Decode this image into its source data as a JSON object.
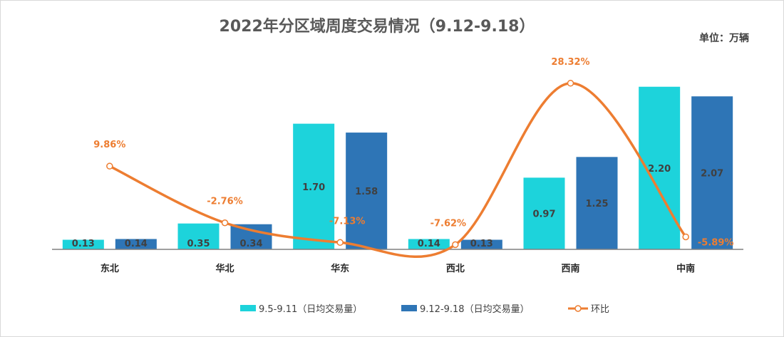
{
  "chart_data": {
    "type": "bar",
    "title": "2022年分区域周度交易情况（9.12-9.18）",
    "unit": "单位：万辆",
    "categories": [
      "东北",
      "华北",
      "华东",
      "西北",
      "西南",
      "中南"
    ],
    "series": [
      {
        "name": "9.5-9.11（日均交易量）",
        "values": [
          0.13,
          0.35,
          1.7,
          0.14,
          0.97,
          2.2
        ],
        "labels": [
          "0.13",
          "0.35",
          "1.70",
          "0.14",
          "0.97",
          "2.20"
        ],
        "color": "#1dd3db"
      },
      {
        "name": "9.12-9.18（日均交易量）",
        "values": [
          0.14,
          0.34,
          1.58,
          0.13,
          1.25,
          2.07
        ],
        "labels": [
          "0.14",
          "0.34",
          "1.58",
          "0.13",
          "1.25",
          "2.07"
        ],
        "color": "#2e75b6"
      }
    ],
    "line_series": {
      "name": "环比",
      "values": [
        9.86,
        -2.76,
        -7.13,
        -7.62,
        28.32,
        -5.89
      ],
      "labels": [
        "9.86%",
        "-2.76%",
        "-7.13%",
        "-7.62%",
        "28.32%",
        "-5.89%"
      ],
      "color": "#ed7d31"
    },
    "ylim": [
      0,
      2.4
    ],
    "line_ylim": [
      -12,
      34
    ],
    "legend_position": "bottom"
  }
}
